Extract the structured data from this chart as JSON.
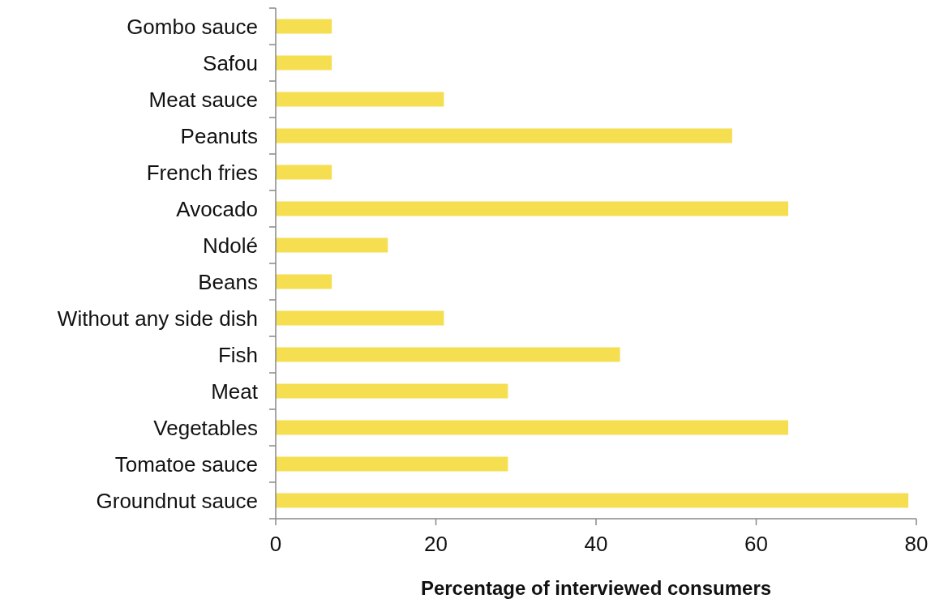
{
  "chart_data": {
    "type": "bar",
    "orientation": "horizontal",
    "xlabel": "Percentage of interviewed consumers",
    "categories": [
      "Gombo sauce",
      "Safou",
      "Meat sauce",
      "Peanuts",
      "French fries",
      "Avocado",
      "Ndolé",
      "Beans",
      "Without any side dish",
      "Fish",
      "Meat",
      "Vegetables",
      "Tomatoe sauce",
      "Groundnut sauce"
    ],
    "values": [
      7,
      7,
      21,
      57,
      7,
      64,
      14,
      7,
      21,
      43,
      29,
      64,
      29,
      79
    ],
    "color": "#f5de50",
    "xlim": [
      0,
      80
    ],
    "xticks": [
      0,
      20,
      40,
      60,
      80
    ],
    "grid": false
  }
}
